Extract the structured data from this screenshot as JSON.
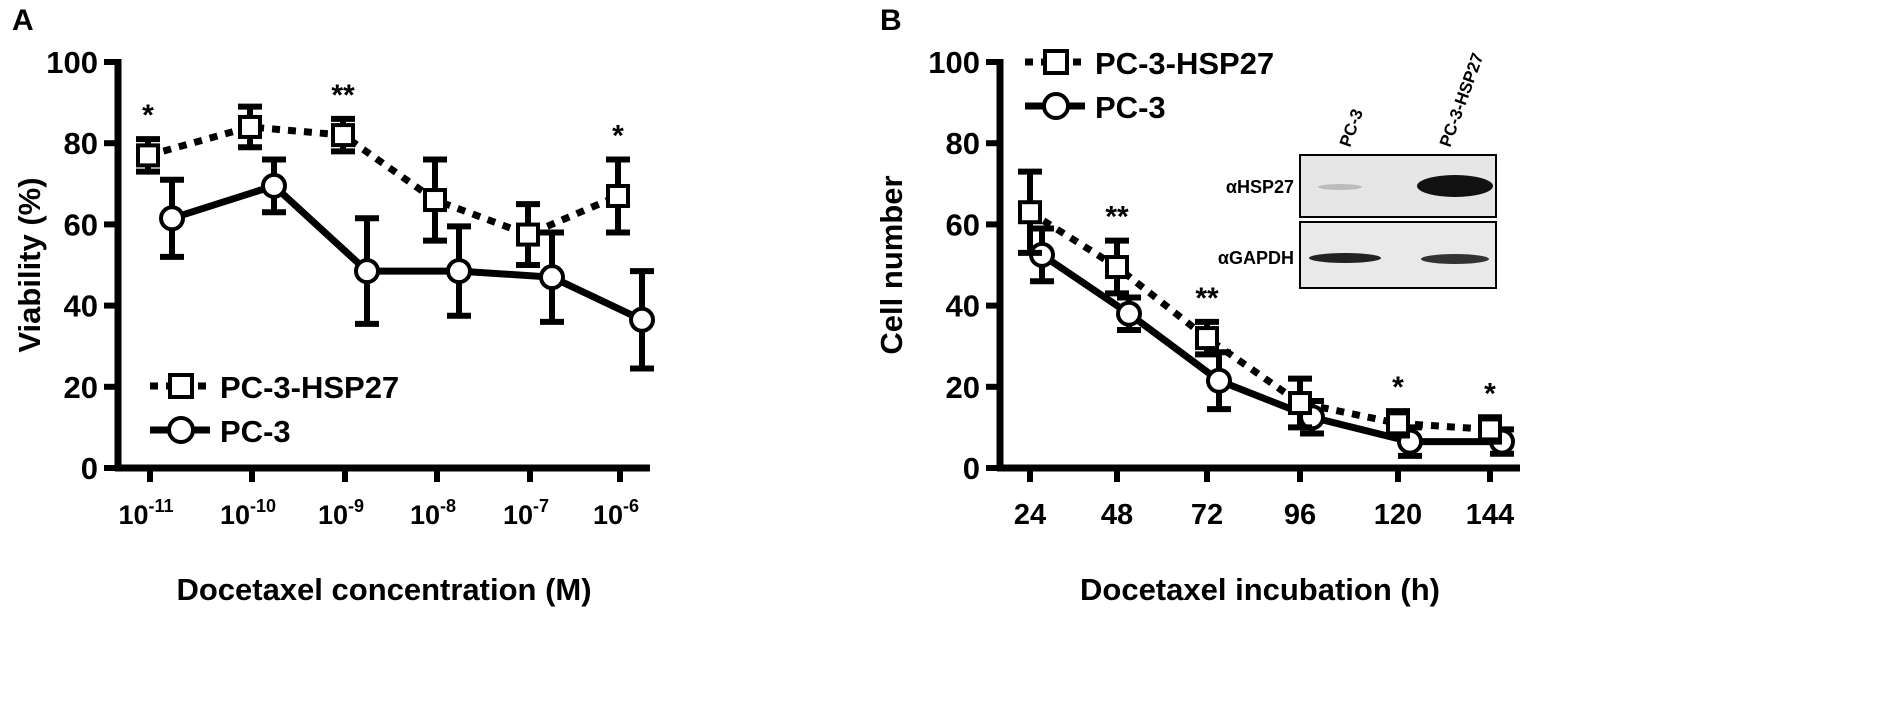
{
  "chart_data": [
    {
      "panel_label": "A",
      "type": "line",
      "xlabel": "Docetaxel concentration (M)",
      "ylabel": "Viability (%)",
      "ylim": [
        0,
        100
      ],
      "yticks": [
        "0",
        "20",
        "40",
        "60",
        "80",
        "100"
      ],
      "categories": [
        {
          "base": "10",
          "exp": "-11"
        },
        {
          "base": "10",
          "exp": "-10"
        },
        {
          "base": "10",
          "exp": "-9"
        },
        {
          "base": "10",
          "exp": "-8"
        },
        {
          "base": "10",
          "exp": "-7"
        },
        {
          "base": "10",
          "exp": "-6"
        }
      ],
      "legend_position": "bottom-left",
      "series": [
        {
          "name": "PC-3-HSP27",
          "marker": "square",
          "line": "dotted",
          "values": [
            77,
            84,
            82,
            66,
            57.5,
            67
          ],
          "errors": [
            4,
            5,
            4,
            10,
            7.5,
            9
          ]
        },
        {
          "name": "PC-3",
          "marker": "circle",
          "line": "solid",
          "values": [
            61.5,
            69.5,
            48.5,
            48.5,
            47,
            36.5
          ],
          "errors": [
            9.5,
            6.5,
            13,
            11,
            11,
            12
          ]
        }
      ],
      "annotations": [
        {
          "index": 0,
          "text": "*"
        },
        {
          "index": 2,
          "text": "**"
        },
        {
          "index": 5,
          "text": "*"
        }
      ]
    },
    {
      "panel_label": "B",
      "type": "line",
      "xlabel": "Docetaxel incubation (h)",
      "ylabel": "Cell number",
      "ylim": [
        0,
        100
      ],
      "yticks": [
        "0",
        "20",
        "40",
        "60",
        "80",
        "100"
      ],
      "categories": [
        "24",
        "48",
        "72",
        "96",
        "120",
        "144"
      ],
      "legend_position": "top-left",
      "series": [
        {
          "name": "PC-3-HSP27",
          "marker": "square",
          "line": "dotted",
          "values": [
            63,
            49.5,
            32,
            16,
            11,
            9.5
          ],
          "errors": [
            10,
            6.5,
            4,
            6,
            3,
            3
          ]
        },
        {
          "name": "PC-3",
          "marker": "circle",
          "line": "solid",
          "values": [
            52.5,
            38,
            21.5,
            12.5,
            6.5,
            6.5
          ],
          "errors": [
            6.5,
            4,
            7,
            4,
            3.5,
            3
          ]
        }
      ],
      "annotations": [
        {
          "index": 1,
          "text": "**"
        },
        {
          "index": 2,
          "text": "**"
        },
        {
          "index": 4,
          "text": "*"
        },
        {
          "index": 5,
          "text": "*"
        }
      ],
      "inset": {
        "lanes": [
          "PC-3",
          "PC-3-HSP27"
        ],
        "rows": [
          "αHSP27",
          "αGAPDH"
        ]
      }
    }
  ]
}
